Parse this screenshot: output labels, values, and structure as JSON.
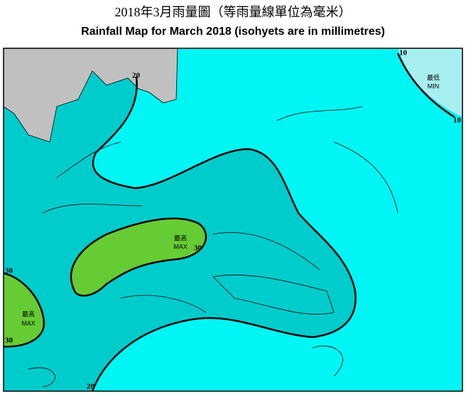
{
  "title_zh": "2018年3月雨量圖（等雨量線單位為毫米）",
  "title_en": "Rainfall Map for March 2018 (isohyets are in millimetres)",
  "isohyet_labels": [
    10,
    10,
    20,
    20,
    30,
    30,
    30
  ],
  "extremes": [
    {
      "zh": "最高",
      "en": "MAX"
    },
    {
      "zh": "最高",
      "en": "MAX"
    },
    {
      "zh": "最低",
      "en": "MIN"
    }
  ]
}
